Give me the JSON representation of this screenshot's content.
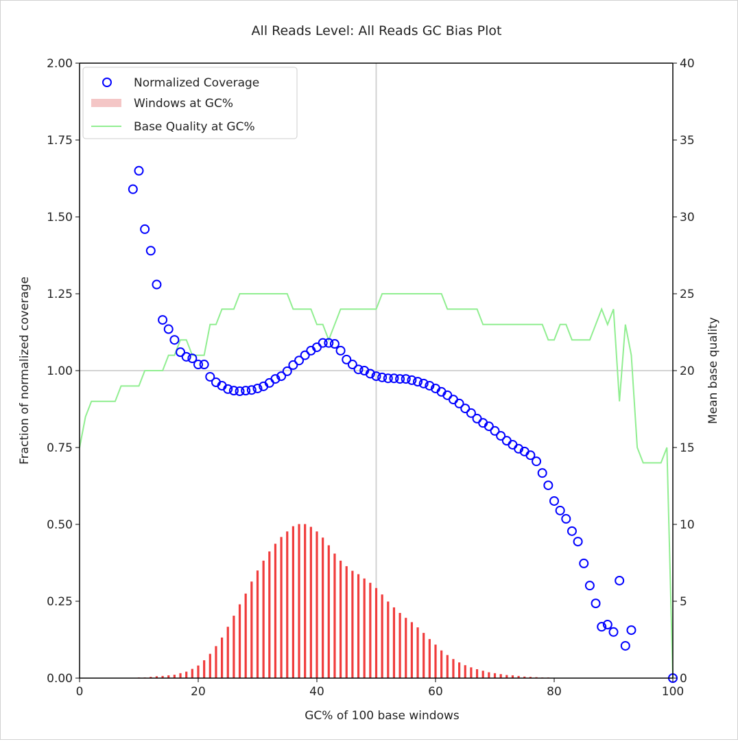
{
  "chart_data": {
    "type": "scatter",
    "title": "All Reads Level: All Reads  GC Bias Plot",
    "xlabel": "GC% of 100 base windows",
    "ylabel": "Fraction of normalized coverage",
    "ylabel_right": "Mean base quality",
    "xlim": [
      0,
      100
    ],
    "ylim": [
      0,
      2.0
    ],
    "ylim_right": [
      0,
      40
    ],
    "xticks": [
      "0",
      "20",
      "40",
      "60",
      "80",
      "100"
    ],
    "yticks": [
      "0.00",
      "0.25",
      "0.50",
      "0.75",
      "1.00",
      "1.25",
      "1.50",
      "1.75",
      "2.00"
    ],
    "yticks_right": [
      "0",
      "5",
      "10",
      "15",
      "20",
      "25",
      "30",
      "35",
      "40"
    ],
    "grid": "lines at x=50 and y=1.0",
    "legend_position": "top-left",
    "series": [
      {
        "name": "Normalized Coverage",
        "kind": "scatter",
        "axis": "left",
        "color": "#0000ff",
        "x": [
          9,
          10,
          11,
          12,
          13,
          14,
          15,
          16,
          17,
          18,
          19,
          20,
          21,
          22,
          23,
          24,
          25,
          26,
          27,
          28,
          29,
          30,
          31,
          32,
          33,
          34,
          35,
          36,
          37,
          38,
          39,
          40,
          41,
          42,
          43,
          44,
          45,
          46,
          47,
          48,
          49,
          50,
          51,
          52,
          53,
          54,
          55,
          56,
          57,
          58,
          59,
          60,
          61,
          62,
          63,
          64,
          65,
          66,
          67,
          68,
          69,
          70,
          71,
          72,
          73,
          74,
          75,
          76,
          77,
          78,
          79,
          80,
          81,
          82,
          83,
          84,
          85,
          86,
          87,
          88,
          89,
          90,
          91,
          92,
          93,
          100
        ],
        "y": [
          1.59,
          1.65,
          1.46,
          1.39,
          1.28,
          1.165,
          1.135,
          1.1,
          1.06,
          1.045,
          1.04,
          1.02,
          1.02,
          0.98,
          0.962,
          0.951,
          0.94,
          0.935,
          0.933,
          0.935,
          0.937,
          0.942,
          0.949,
          0.96,
          0.973,
          0.982,
          0.998,
          1.018,
          1.033,
          1.05,
          1.065,
          1.076,
          1.09,
          1.09,
          1.087,
          1.065,
          1.036,
          1.02,
          1.004,
          1.0,
          0.99,
          0.982,
          0.978,
          0.975,
          0.975,
          0.973,
          0.973,
          0.969,
          0.964,
          0.958,
          0.951,
          0.942,
          0.931,
          0.92,
          0.906,
          0.893,
          0.877,
          0.862,
          0.844,
          0.83,
          0.819,
          0.804,
          0.788,
          0.772,
          0.759,
          0.746,
          0.737,
          0.725,
          0.705,
          0.667,
          0.627,
          0.576,
          0.545,
          0.518,
          0.478,
          0.444,
          0.373,
          0.301,
          0.243,
          0.167,
          0.174,
          0.15,
          0.317,
          0.105,
          0.156,
          0.0
        ]
      },
      {
        "name": "Windows at GC%",
        "kind": "bar",
        "axis": "left",
        "color": "#ff0000",
        "x": [
          9,
          10,
          11,
          12,
          13,
          14,
          15,
          16,
          17,
          18,
          19,
          20,
          21,
          22,
          23,
          24,
          25,
          26,
          27,
          28,
          29,
          30,
          31,
          32,
          33,
          34,
          35,
          36,
          37,
          38,
          39,
          40,
          41,
          42,
          43,
          44,
          45,
          46,
          47,
          48,
          49,
          50,
          51,
          52,
          53,
          54,
          55,
          56,
          57,
          58,
          59,
          60,
          61,
          62,
          63,
          64,
          65,
          66,
          67,
          68,
          69,
          70,
          71,
          72,
          73,
          74,
          75,
          76,
          77,
          78,
          79,
          80
        ],
        "y": [
          0.001,
          0.002,
          0.002,
          0.004,
          0.006,
          0.007,
          0.009,
          0.011,
          0.016,
          0.021,
          0.03,
          0.041,
          0.058,
          0.079,
          0.104,
          0.132,
          0.167,
          0.203,
          0.24,
          0.275,
          0.314,
          0.35,
          0.382,
          0.412,
          0.437,
          0.459,
          0.477,
          0.494,
          0.501,
          0.501,
          0.492,
          0.477,
          0.457,
          0.432,
          0.405,
          0.382,
          0.364,
          0.349,
          0.338,
          0.324,
          0.31,
          0.293,
          0.272,
          0.249,
          0.23,
          0.212,
          0.196,
          0.182,
          0.165,
          0.147,
          0.127,
          0.109,
          0.09,
          0.075,
          0.062,
          0.051,
          0.042,
          0.035,
          0.029,
          0.024,
          0.019,
          0.016,
          0.013,
          0.01,
          0.009,
          0.007,
          0.005,
          0.004,
          0.003,
          0.002,
          0.002,
          0.001
        ]
      },
      {
        "name": "Base Quality at GC%",
        "kind": "line",
        "axis": "right",
        "color": "#90ee90",
        "x": [
          0,
          1,
          2,
          3,
          4,
          5,
          6,
          7,
          8,
          9,
          10,
          11,
          12,
          13,
          14,
          15,
          16,
          17,
          18,
          19,
          20,
          21,
          22,
          23,
          24,
          25,
          26,
          27,
          28,
          29,
          30,
          31,
          32,
          33,
          34,
          35,
          36,
          37,
          38,
          39,
          40,
          41,
          42,
          43,
          44,
          45,
          46,
          47,
          48,
          49,
          50,
          51,
          52,
          53,
          54,
          55,
          56,
          57,
          58,
          59,
          60,
          61,
          62,
          63,
          64,
          65,
          66,
          67,
          68,
          69,
          70,
          71,
          72,
          73,
          74,
          75,
          76,
          77,
          78,
          79,
          80,
          81,
          82,
          83,
          84,
          85,
          86,
          87,
          88,
          89,
          90,
          91,
          92,
          93,
          94,
          95,
          96,
          97,
          98,
          99,
          100
        ],
        "y": [
          15,
          17,
          18,
          18,
          18,
          18,
          18,
          19,
          19,
          19,
          19,
          20,
          20,
          20,
          20,
          21,
          21,
          22,
          22,
          21,
          21,
          21,
          23,
          23,
          24,
          24,
          24,
          25,
          25,
          25,
          25,
          25,
          25,
          25,
          25,
          25,
          24,
          24,
          24,
          24,
          23,
          23,
          22,
          23,
          24,
          24,
          24,
          24,
          24,
          24,
          24,
          25,
          25,
          25,
          25,
          25,
          25,
          25,
          25,
          25,
          25,
          25,
          24,
          24,
          24,
          24,
          24,
          24,
          23,
          23,
          23,
          23,
          23,
          23,
          23,
          23,
          23,
          23,
          23,
          22,
          22,
          23,
          23,
          22,
          22,
          22,
          22,
          23,
          24,
          23,
          24,
          18,
          23,
          21,
          15,
          14,
          14,
          14,
          14,
          15,
          0
        ]
      }
    ]
  }
}
